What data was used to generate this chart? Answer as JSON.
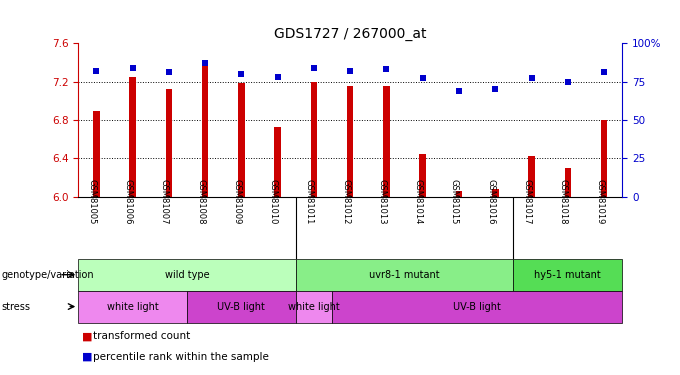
{
  "title": "GDS1727 / 267000_at",
  "samples": [
    "GSM81005",
    "GSM81006",
    "GSM81007",
    "GSM81008",
    "GSM81009",
    "GSM81010",
    "GSM81011",
    "GSM81012",
    "GSM81013",
    "GSM81014",
    "GSM81015",
    "GSM81016",
    "GSM81017",
    "GSM81018",
    "GSM81019"
  ],
  "bar_values": [
    6.89,
    7.25,
    7.12,
    7.42,
    7.18,
    6.73,
    7.2,
    7.15,
    7.15,
    6.45,
    6.06,
    6.08,
    6.43,
    6.3,
    6.8
  ],
  "dot_values": [
    82,
    84,
    81,
    87,
    80,
    78,
    84,
    82,
    83,
    77,
    69,
    70,
    77,
    75,
    81
  ],
  "bar_color": "#cc0000",
  "dot_color": "#0000cc",
  "ylim_left": [
    6.0,
    7.6
  ],
  "ylim_right": [
    0,
    100
  ],
  "yticks_left": [
    6.0,
    6.4,
    6.8,
    7.2,
    7.6
  ],
  "yticks_right": [
    0,
    25,
    50,
    75,
    100
  ],
  "ytick_labels_right": [
    "0",
    "25",
    "50",
    "75",
    "100%"
  ],
  "grid_values": [
    6.4,
    6.8,
    7.2
  ],
  "genotype_groups": [
    {
      "label": "wild type",
      "start": 0,
      "end": 6,
      "color": "#bbffbb"
    },
    {
      "label": "uvr8-1 mutant",
      "start": 6,
      "end": 12,
      "color": "#88ee88"
    },
    {
      "label": "hy5-1 mutant",
      "start": 12,
      "end": 15,
      "color": "#55dd55"
    }
  ],
  "stress_groups": [
    {
      "label": "white light",
      "start": 0,
      "end": 3,
      "color": "#ee88ee"
    },
    {
      "label": "UV-B light",
      "start": 3,
      "end": 6,
      "color": "#cc44cc"
    },
    {
      "label": "white light",
      "start": 6,
      "end": 7,
      "color": "#ee88ee"
    },
    {
      "label": "UV-B light",
      "start": 7,
      "end": 15,
      "color": "#cc44cc"
    }
  ],
  "legend_items": [
    {
      "label": "transformed count",
      "color": "#cc0000"
    },
    {
      "label": "percentile rank within the sample",
      "color": "#0000cc"
    }
  ],
  "bg_color": "#ffffff",
  "axis_color_left": "#cc0000",
  "axis_color_right": "#0000cc",
  "label_bg": "#cccccc"
}
